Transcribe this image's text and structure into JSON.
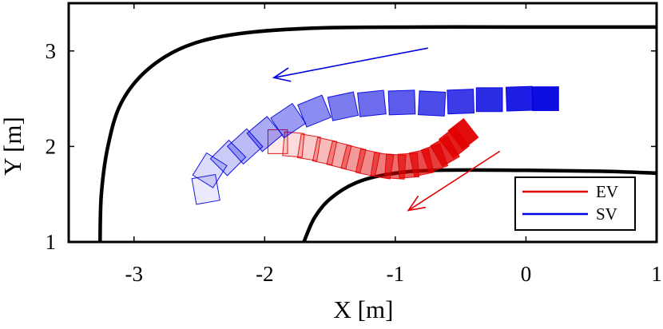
{
  "chart_data": {
    "type": "scatter",
    "title": "",
    "xlabel": "X [m]",
    "ylabel": "Y [m]",
    "xlim": [
      -3.5,
      1
    ],
    "ylim": [
      1,
      3.5
    ],
    "xticks": [
      -3,
      -2,
      -1,
      0,
      1
    ],
    "yticks": [
      1,
      2,
      3
    ],
    "xtick_labels": [
      "-3",
      "-2",
      "-1",
      "0",
      "1"
    ],
    "ytick_labels": [
      "1",
      "2",
      "3"
    ],
    "grid": false,
    "legend": {
      "placement": "bottom-right",
      "entries": [
        {
          "label": "EV",
          "color": "#e00000"
        },
        {
          "label": "SV",
          "color": "#0000e0"
        }
      ]
    },
    "road_boundaries": [
      {
        "name": "outer",
        "points": [
          [
            -3.26,
            1
          ],
          [
            -3.25,
            1.5
          ],
          [
            -3.2,
            2.0
          ],
          [
            -3.1,
            2.45
          ],
          [
            -2.9,
            2.8
          ],
          [
            -2.6,
            3.05
          ],
          [
            -2.2,
            3.18
          ],
          [
            -1.6,
            3.24
          ],
          [
            -0.8,
            3.25
          ],
          [
            0,
            3.25
          ],
          [
            1,
            3.25
          ]
        ]
      },
      {
        "name": "inner",
        "points": [
          [
            -1.7,
            1
          ],
          [
            -1.62,
            1.25
          ],
          [
            -1.5,
            1.45
          ],
          [
            -1.3,
            1.62
          ],
          [
            -1.05,
            1.71
          ],
          [
            -0.7,
            1.75
          ],
          [
            0,
            1.75
          ],
          [
            0.6,
            1.74
          ],
          [
            1,
            1.72
          ]
        ]
      }
    ],
    "series": [
      {
        "name": "EV",
        "color": "#e00000",
        "vehicle_size": [
          0.15,
          0.25
        ],
        "poses": [
          {
            "x": -1.9,
            "y": 2.05,
            "heading": 0
          },
          {
            "x": -1.78,
            "y": 2.02,
            "heading": -5
          },
          {
            "x": -1.66,
            "y": 1.99,
            "heading": -9
          },
          {
            "x": -1.54,
            "y": 1.95,
            "heading": -12
          },
          {
            "x": -1.43,
            "y": 1.91,
            "heading": -14
          },
          {
            "x": -1.32,
            "y": 1.87,
            "heading": -14
          },
          {
            "x": -1.21,
            "y": 1.83,
            "heading": -12
          },
          {
            "x": -1.1,
            "y": 1.8,
            "heading": -9
          },
          {
            "x": -1.0,
            "y": 1.79,
            "heading": -4
          },
          {
            "x": -0.9,
            "y": 1.8,
            "heading": 4
          },
          {
            "x": -0.8,
            "y": 1.83,
            "heading": 12
          },
          {
            "x": -0.7,
            "y": 1.88,
            "heading": 20
          },
          {
            "x": -0.62,
            "y": 1.95,
            "heading": 30
          },
          {
            "x": -0.55,
            "y": 2.04,
            "heading": 38
          },
          {
            "x": -0.48,
            "y": 2.13,
            "heading": 38
          }
        ]
      },
      {
        "name": "SV",
        "color": "#0000e0",
        "vehicle_size": [
          0.2,
          0.25
        ],
        "poses": [
          {
            "x": -2.45,
            "y": 1.55,
            "heading": 100
          },
          {
            "x": -2.42,
            "y": 1.75,
            "heading": 58
          },
          {
            "x": -2.28,
            "y": 1.88,
            "heading": 45
          },
          {
            "x": -2.15,
            "y": 2.0,
            "heading": 42
          },
          {
            "x": -2.0,
            "y": 2.13,
            "heading": 40
          },
          {
            "x": -1.82,
            "y": 2.27,
            "heading": 34
          },
          {
            "x": -1.62,
            "y": 2.37,
            "heading": 22
          },
          {
            "x": -1.4,
            "y": 2.42,
            "heading": 12
          },
          {
            "x": -1.18,
            "y": 2.45,
            "heading": 6
          },
          {
            "x": -0.95,
            "y": 2.46,
            "heading": 2
          },
          {
            "x": -0.72,
            "y": 2.45,
            "heading": -3
          },
          {
            "x": -0.5,
            "y": 2.47,
            "heading": 2
          },
          {
            "x": -0.28,
            "y": 2.49,
            "heading": 0
          },
          {
            "x": -0.05,
            "y": 2.5,
            "heading": 2
          },
          {
            "x": 0.15,
            "y": 2.5,
            "heading": 0
          }
        ]
      }
    ],
    "arrows": [
      {
        "series": "EV",
        "from": [
          -0.2,
          1.95
        ],
        "to": [
          -0.9,
          1.33
        ],
        "color": "#e00000"
      },
      {
        "series": "SV",
        "from": [
          -0.75,
          3.03
        ],
        "to": [
          -1.93,
          2.72
        ],
        "color": "#0000e0"
      }
    ]
  }
}
